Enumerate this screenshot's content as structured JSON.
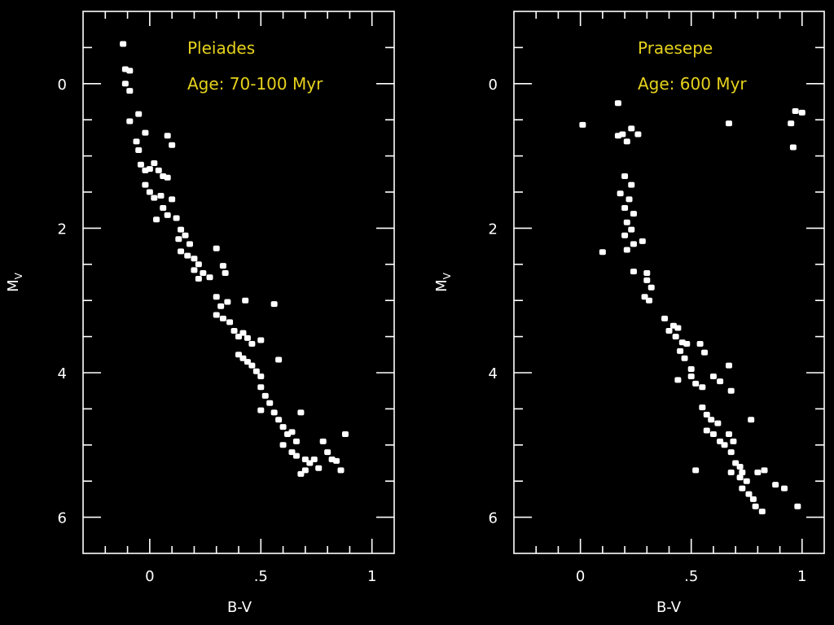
{
  "colors": {
    "background": "#000000",
    "axes": "#ffffff",
    "points": "#ffffff",
    "titles": "#e6d21c"
  },
  "chart_data": [
    {
      "type": "scatter",
      "title": "Pleiades",
      "subtitle": "Age: 70-100 Myr",
      "xlabel": "B-V",
      "ylabel": "M",
      "ylabel_sub": "V",
      "xlim": [
        -0.3,
        1.1
      ],
      "ylim": [
        6.5,
        -1.0
      ],
      "y_inverted": true,
      "xticks": [
        0,
        0.5,
        1
      ],
      "xtick_labels": [
        "0",
        ".5",
        "1"
      ],
      "yticks": [
        0,
        2,
        4,
        6
      ],
      "ytick_labels": [
        "0",
        "2",
        "4",
        "6"
      ],
      "grid": false,
      "points": [
        [
          -0.12,
          -0.55
        ],
        [
          -0.11,
          -0.2
        ],
        [
          -0.09,
          -0.18
        ],
        [
          -0.11,
          0.0
        ],
        [
          -0.09,
          0.1
        ],
        [
          -0.09,
          0.52
        ],
        [
          -0.05,
          0.42
        ],
        [
          -0.06,
          0.8
        ],
        [
          -0.05,
          0.92
        ],
        [
          -0.02,
          0.68
        ],
        [
          0.08,
          0.72
        ],
        [
          0.1,
          0.85
        ],
        [
          -0.04,
          1.12
        ],
        [
          -0.02,
          1.2
        ],
        [
          0.0,
          1.18
        ],
        [
          0.02,
          1.1
        ],
        [
          0.04,
          1.2
        ],
        [
          0.06,
          1.28
        ],
        [
          0.08,
          1.3
        ],
        [
          -0.02,
          1.4
        ],
        [
          0.0,
          1.5
        ],
        [
          0.02,
          1.58
        ],
        [
          0.05,
          1.55
        ],
        [
          0.1,
          1.6
        ],
        [
          0.06,
          1.72
        ],
        [
          0.08,
          1.82
        ],
        [
          0.03,
          1.88
        ],
        [
          0.12,
          1.86
        ],
        [
          0.14,
          2.02
        ],
        [
          0.13,
          2.15
        ],
        [
          0.16,
          2.1
        ],
        [
          0.18,
          2.22
        ],
        [
          0.14,
          2.32
        ],
        [
          0.17,
          2.38
        ],
        [
          0.2,
          2.42
        ],
        [
          0.22,
          2.5
        ],
        [
          0.2,
          2.58
        ],
        [
          0.24,
          2.62
        ],
        [
          0.27,
          2.68
        ],
        [
          0.22,
          2.7
        ],
        [
          0.3,
          2.28
        ],
        [
          0.33,
          2.52
        ],
        [
          0.34,
          2.62
        ],
        [
          0.3,
          2.95
        ],
        [
          0.32,
          3.08
        ],
        [
          0.35,
          3.02
        ],
        [
          0.3,
          3.2
        ],
        [
          0.33,
          3.25
        ],
        [
          0.36,
          3.3
        ],
        [
          0.43,
          3.0
        ],
        [
          0.56,
          3.05
        ],
        [
          0.38,
          3.42
        ],
        [
          0.4,
          3.5
        ],
        [
          0.42,
          3.45
        ],
        [
          0.44,
          3.52
        ],
        [
          0.46,
          3.6
        ],
        [
          0.5,
          3.55
        ],
        [
          0.4,
          3.75
        ],
        [
          0.42,
          3.8
        ],
        [
          0.44,
          3.85
        ],
        [
          0.46,
          3.9
        ],
        [
          0.48,
          3.98
        ],
        [
          0.5,
          4.05
        ],
        [
          0.58,
          3.82
        ],
        [
          0.5,
          4.2
        ],
        [
          0.52,
          4.32
        ],
        [
          0.54,
          4.42
        ],
        [
          0.5,
          4.52
        ],
        [
          0.56,
          4.55
        ],
        [
          0.58,
          4.65
        ],
        [
          0.6,
          4.75
        ],
        [
          0.62,
          4.85
        ],
        [
          0.64,
          4.82
        ],
        [
          0.66,
          4.95
        ],
        [
          0.68,
          4.55
        ],
        [
          0.6,
          5.0
        ],
        [
          0.64,
          5.1
        ],
        [
          0.66,
          5.15
        ],
        [
          0.7,
          5.2
        ],
        [
          0.72,
          5.25
        ],
        [
          0.7,
          5.35
        ],
        [
          0.68,
          5.4
        ],
        [
          0.76,
          5.32
        ],
        [
          0.78,
          4.95
        ],
        [
          0.8,
          5.1
        ],
        [
          0.82,
          5.2
        ],
        [
          0.84,
          5.22
        ],
        [
          0.86,
          5.35
        ],
        [
          0.88,
          4.85
        ],
        [
          0.74,
          5.2
        ]
      ]
    },
    {
      "type": "scatter",
      "title": "Praesepe",
      "subtitle": "Age: 600 Myr",
      "xlabel": "B-V",
      "ylabel": "M",
      "ylabel_sub": "V",
      "xlim": [
        -0.3,
        1.1
      ],
      "ylim": [
        6.5,
        -1.0
      ],
      "y_inverted": true,
      "xticks": [
        0,
        0.5,
        1
      ],
      "xtick_labels": [
        "0",
        ".5",
        "1"
      ],
      "yticks": [
        0,
        2,
        4,
        6
      ],
      "ytick_labels": [
        "0",
        "2",
        "4",
        "6"
      ],
      "grid": false,
      "points": [
        [
          0.01,
          0.57
        ],
        [
          0.17,
          0.27
        ],
        [
          0.17,
          0.72
        ],
        [
          0.19,
          0.7
        ],
        [
          0.21,
          0.8
        ],
        [
          0.23,
          0.62
        ],
        [
          0.26,
          0.7
        ],
        [
          0.67,
          0.55
        ],
        [
          0.95,
          0.55
        ],
        [
          0.97,
          0.38
        ],
        [
          1.0,
          0.4
        ],
        [
          0.96,
          0.88
        ],
        [
          0.2,
          1.28
        ],
        [
          0.23,
          1.4
        ],
        [
          0.18,
          1.52
        ],
        [
          0.22,
          1.6
        ],
        [
          0.2,
          1.72
        ],
        [
          0.24,
          1.8
        ],
        [
          0.21,
          1.92
        ],
        [
          0.23,
          2.02
        ],
        [
          0.2,
          2.1
        ],
        [
          0.24,
          2.22
        ],
        [
          0.1,
          2.33
        ],
        [
          0.21,
          2.3
        ],
        [
          0.28,
          2.18
        ],
        [
          0.24,
          2.6
        ],
        [
          0.3,
          2.62
        ],
        [
          0.3,
          2.72
        ],
        [
          0.32,
          2.82
        ],
        [
          0.29,
          2.95
        ],
        [
          0.31,
          3.0
        ],
        [
          0.38,
          3.25
        ],
        [
          0.42,
          3.35
        ],
        [
          0.44,
          3.38
        ],
        [
          0.4,
          3.42
        ],
        [
          0.43,
          3.5
        ],
        [
          0.46,
          3.58
        ],
        [
          0.48,
          3.6
        ],
        [
          0.45,
          3.7
        ],
        [
          0.47,
          3.8
        ],
        [
          0.5,
          3.95
        ],
        [
          0.54,
          3.6
        ],
        [
          0.56,
          3.72
        ],
        [
          0.44,
          4.1
        ],
        [
          0.5,
          4.05
        ],
        [
          0.52,
          4.15
        ],
        [
          0.55,
          4.2
        ],
        [
          0.6,
          4.05
        ],
        [
          0.63,
          4.12
        ],
        [
          0.67,
          3.9
        ],
        [
          0.68,
          4.25
        ],
        [
          0.55,
          4.48
        ],
        [
          0.57,
          4.58
        ],
        [
          0.59,
          4.65
        ],
        [
          0.62,
          4.7
        ],
        [
          0.57,
          4.8
        ],
        [
          0.6,
          4.85
        ],
        [
          0.63,
          4.95
        ],
        [
          0.65,
          5.0
        ],
        [
          0.67,
          4.85
        ],
        [
          0.69,
          4.95
        ],
        [
          0.68,
          5.1
        ],
        [
          0.7,
          5.25
        ],
        [
          0.72,
          5.3
        ],
        [
          0.68,
          5.38
        ],
        [
          0.72,
          5.45
        ],
        [
          0.75,
          5.5
        ],
        [
          0.73,
          5.6
        ],
        [
          0.76,
          5.68
        ],
        [
          0.78,
          5.75
        ],
        [
          0.79,
          5.85
        ],
        [
          0.82,
          5.92
        ],
        [
          0.8,
          5.38
        ],
        [
          0.83,
          5.35
        ],
        [
          0.88,
          5.55
        ],
        [
          0.92,
          5.6
        ],
        [
          0.52,
          5.35
        ],
        [
          0.77,
          4.65
        ],
        [
          0.98,
          5.85
        ],
        [
          0.73,
          5.38
        ]
      ]
    }
  ]
}
